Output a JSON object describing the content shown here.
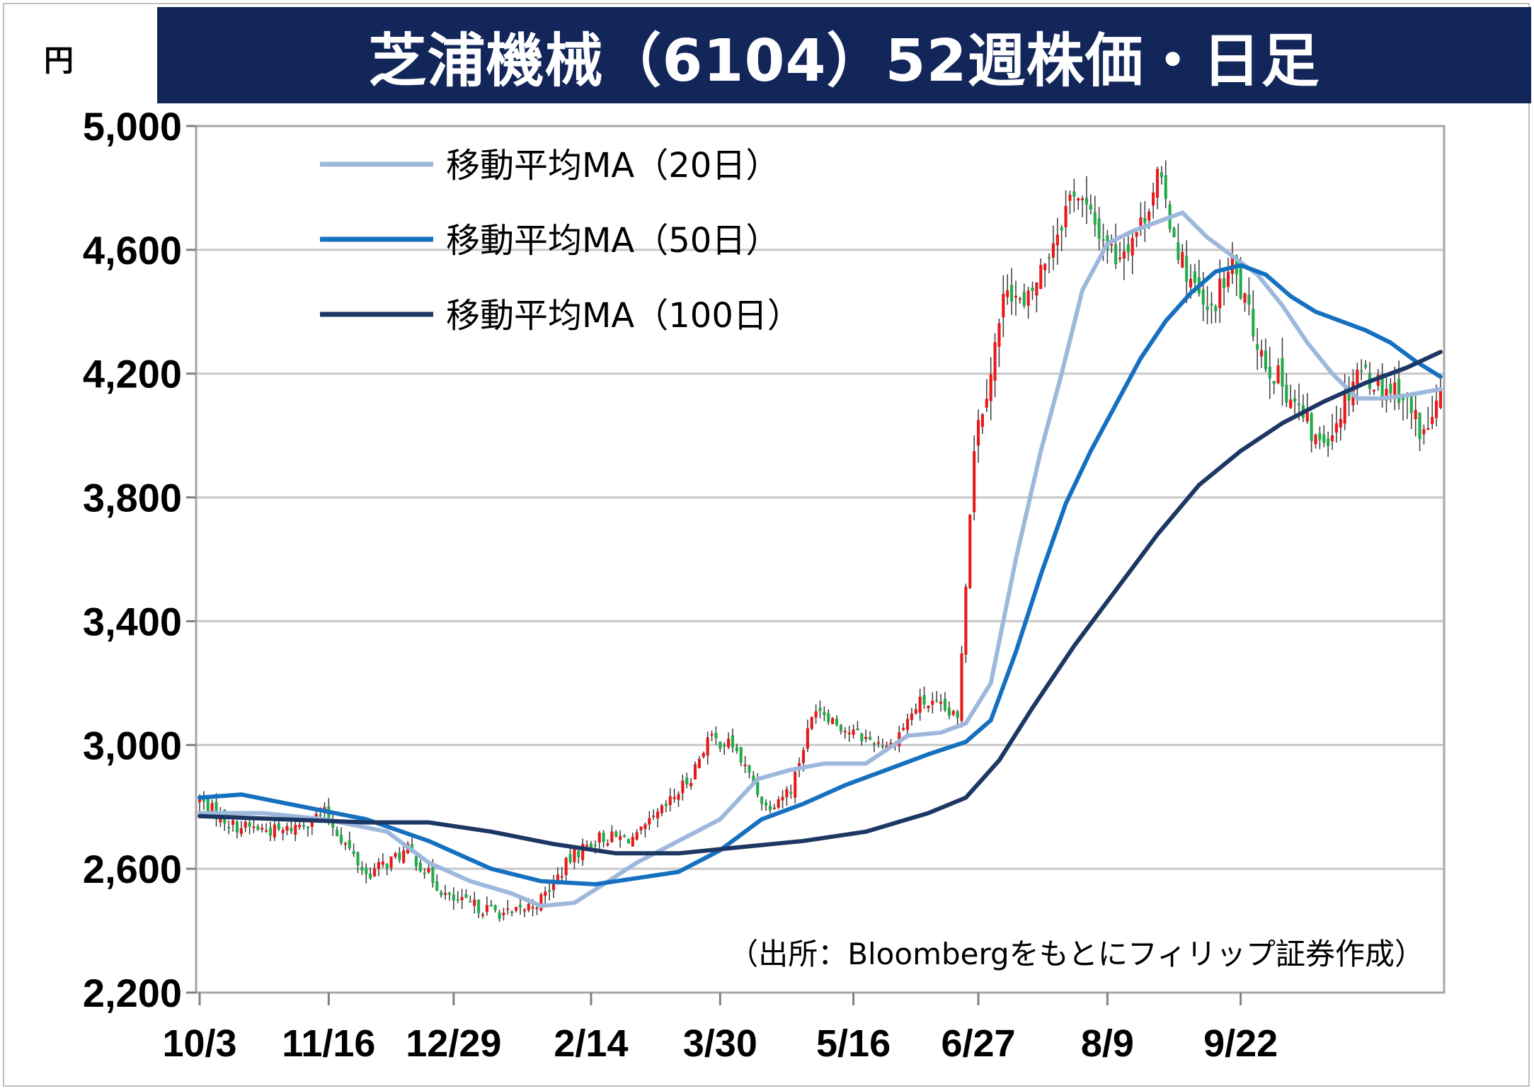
{
  "title": "芝浦機械（6104）52週株価・日足",
  "unit": "円",
  "source": "（出所：Bloombergをもとにフィリップ証券作成）",
  "chart_data": {
    "type": "candlestick",
    "ylim": [
      2200,
      5000
    ],
    "yticks": [
      2200,
      2600,
      3000,
      3400,
      3800,
      4200,
      4600,
      5000
    ],
    "ytick_labels": [
      "2,200",
      "2,600",
      "3,000",
      "3,400",
      "3,800",
      "4,200",
      "4,600",
      "5,000"
    ],
    "xtick_labels": [
      "10/3",
      "11/16",
      "12/29",
      "2/14",
      "3/30",
      "5/16",
      "6/27",
      "8/9",
      "9/22"
    ],
    "grid": true,
    "legend_position": "top-left",
    "colors": {
      "up": "#e8191b",
      "down": "#22ab4a",
      "ma20": "#9db8dc",
      "ma50": "#1670c0",
      "ma100": "#1c3764"
    },
    "keypoints": {
      "close": [
        [
          0,
          2820
        ],
        [
          8,
          2740
        ],
        [
          20,
          2720
        ],
        [
          30,
          2780
        ],
        [
          40,
          2580
        ],
        [
          50,
          2660
        ],
        [
          60,
          2500
        ],
        [
          66,
          2480
        ],
        [
          75,
          2450
        ],
        [
          82,
          2500
        ],
        [
          90,
          2650
        ],
        [
          96,
          2700
        ],
        [
          105,
          2700
        ],
        [
          112,
          2800
        ],
        [
          118,
          2900
        ],
        [
          122,
          3020
        ],
        [
          128,
          3000
        ],
        [
          136,
          2800
        ],
        [
          142,
          2860
        ],
        [
          148,
          3130
        ],
        [
          155,
          3050
        ],
        [
          160,
          3020
        ],
        [
          166,
          3000
        ],
        [
          173,
          3140
        ],
        [
          178,
          3120
        ],
        [
          182,
          3080
        ],
        [
          186,
          3980
        ],
        [
          190,
          4220
        ],
        [
          194,
          4500
        ],
        [
          198,
          4400
        ],
        [
          204,
          4600
        ],
        [
          210,
          4800
        ],
        [
          214,
          4700
        ],
        [
          220,
          4580
        ],
        [
          226,
          4680
        ],
        [
          230,
          4840
        ],
        [
          236,
          4560
        ],
        [
          242,
          4380
        ],
        [
          248,
          4550
        ],
        [
          252,
          4380
        ],
        [
          256,
          4240
        ],
        [
          262,
          4130
        ],
        [
          268,
          3980
        ],
        [
          272,
          4020
        ],
        [
          278,
          4220
        ],
        [
          284,
          4160
        ],
        [
          288,
          4150
        ],
        [
          294,
          4000
        ],
        [
          298,
          4120
        ]
      ]
    },
    "series": [
      {
        "name": "移動平均MA（20日）",
        "values": [
          [
            0,
            2780
          ],
          [
            15,
            2780
          ],
          [
            30,
            2760
          ],
          [
            45,
            2720
          ],
          [
            55,
            2620
          ],
          [
            65,
            2560
          ],
          [
            75,
            2520
          ],
          [
            82,
            2480
          ],
          [
            90,
            2490
          ],
          [
            97,
            2550
          ],
          [
            105,
            2620
          ],
          [
            115,
            2690
          ],
          [
            125,
            2760
          ],
          [
            134,
            2890
          ],
          [
            142,
            2920
          ],
          [
            150,
            2940
          ],
          [
            160,
            2940
          ],
          [
            170,
            3030
          ],
          [
            178,
            3040
          ],
          [
            184,
            3070
          ],
          [
            190,
            3200
          ],
          [
            196,
            3600
          ],
          [
            202,
            3950
          ],
          [
            207,
            4200
          ],
          [
            212,
            4470
          ],
          [
            218,
            4620
          ],
          [
            224,
            4660
          ],
          [
            230,
            4690
          ],
          [
            236,
            4720
          ],
          [
            242,
            4640
          ],
          [
            248,
            4580
          ],
          [
            254,
            4520
          ],
          [
            260,
            4420
          ],
          [
            266,
            4300
          ],
          [
            272,
            4200
          ],
          [
            278,
            4120
          ],
          [
            284,
            4120
          ],
          [
            290,
            4130
          ],
          [
            298,
            4150
          ]
        ]
      },
      {
        "name": "移動平均MA（50日）",
        "values": [
          [
            0,
            2830
          ],
          [
            10,
            2840
          ],
          [
            25,
            2800
          ],
          [
            40,
            2760
          ],
          [
            55,
            2690
          ],
          [
            70,
            2600
          ],
          [
            82,
            2560
          ],
          [
            95,
            2550
          ],
          [
            105,
            2570
          ],
          [
            115,
            2590
          ],
          [
            125,
            2660
          ],
          [
            135,
            2760
          ],
          [
            145,
            2810
          ],
          [
            155,
            2870
          ],
          [
            165,
            2920
          ],
          [
            175,
            2970
          ],
          [
            184,
            3010
          ],
          [
            190,
            3080
          ],
          [
            196,
            3300
          ],
          [
            202,
            3550
          ],
          [
            208,
            3780
          ],
          [
            214,
            3950
          ],
          [
            220,
            4100
          ],
          [
            226,
            4250
          ],
          [
            232,
            4370
          ],
          [
            238,
            4460
          ],
          [
            244,
            4530
          ],
          [
            250,
            4550
          ],
          [
            256,
            4520
          ],
          [
            262,
            4450
          ],
          [
            268,
            4400
          ],
          [
            274,
            4370
          ],
          [
            280,
            4340
          ],
          [
            286,
            4300
          ],
          [
            292,
            4240
          ],
          [
            298,
            4190
          ]
        ]
      },
      {
        "name": "移動平均MA（100日）",
        "values": [
          [
            0,
            2770
          ],
          [
            20,
            2760
          ],
          [
            40,
            2750
          ],
          [
            55,
            2750
          ],
          [
            70,
            2720
          ],
          [
            85,
            2680
          ],
          [
            100,
            2650
          ],
          [
            115,
            2650
          ],
          [
            130,
            2670
          ],
          [
            145,
            2690
          ],
          [
            160,
            2720
          ],
          [
            175,
            2780
          ],
          [
            184,
            2830
          ],
          [
            192,
            2950
          ],
          [
            200,
            3120
          ],
          [
            210,
            3320
          ],
          [
            220,
            3500
          ],
          [
            230,
            3680
          ],
          [
            240,
            3840
          ],
          [
            250,
            3950
          ],
          [
            260,
            4040
          ],
          [
            270,
            4110
          ],
          [
            280,
            4170
          ],
          [
            290,
            4220
          ],
          [
            298,
            4270
          ]
        ]
      }
    ]
  }
}
